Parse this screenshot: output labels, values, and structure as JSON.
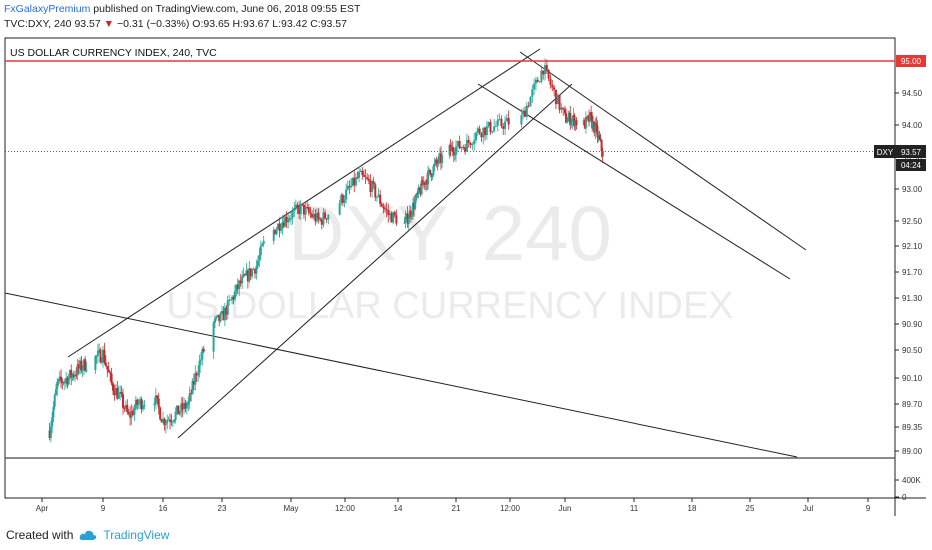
{
  "header": {
    "publisher": "FxGalaxyPremium",
    "published_text": "published on TradingView.com, June 06, 2018 09:55 EST",
    "symbol": "TVC:DXY, 240",
    "last": "93.57",
    "arrow": "▼",
    "change": "−0.31 (−0.33%)",
    "ohlc": "O:93.65 H:93.67 L:93.42 C:93.57"
  },
  "chart_data": {
    "type": "candlestick",
    "title": "US DOLLAR CURRENCY INDEX, 240, TVC",
    "watermark_top": "DXY, 240",
    "watermark_bottom": "US DOLLAR CURRENCY INDEX",
    "x_ticks": [
      "Apr",
      "9",
      "16",
      "23",
      "May",
      "12:00",
      "14",
      "21",
      "12:00",
      "Jun",
      "11",
      "18",
      "25",
      "Jul",
      "9"
    ],
    "y_ticks": [
      "94.50",
      "94.00",
      "93.50",
      "93.00",
      "92.50",
      "92.10",
      "91.70",
      "91.30",
      "90.90",
      "90.50",
      "90.10",
      "89.70",
      "89.35",
      "89.00"
    ],
    "volume_ticks": [
      "400K",
      "0"
    ],
    "price_line": {
      "label": "95.00",
      "value": 95.0,
      "color": "#e53935"
    },
    "last_price": {
      "symbol": "DXY",
      "value": "93.57",
      "countdown": "04:24"
    },
    "colors": {
      "up": "#26a69a",
      "down": "#c62828"
    },
    "trend_points": [
      [
        "2018-04-02",
        89.3
      ],
      [
        "2018-04-03",
        90.0
      ],
      [
        "2018-04-05",
        90.15
      ],
      [
        "2018-04-06",
        90.25
      ],
      [
        "2018-04-09",
        90.45
      ],
      [
        "2018-04-10",
        90.0
      ],
      [
        "2018-04-11",
        89.8
      ],
      [
        "2018-04-12",
        89.5
      ],
      [
        "2018-04-13",
        89.7
      ],
      [
        "2018-04-15",
        89.8
      ],
      [
        "2018-04-16",
        89.45
      ],
      [
        "2018-04-17",
        89.5
      ],
      [
        "2018-04-19",
        89.7
      ],
      [
        "2018-04-20",
        90.2
      ],
      [
        "2018-04-22",
        90.9
      ],
      [
        "2018-04-23",
        91.0
      ],
      [
        "2018-04-25",
        91.5
      ],
      [
        "2018-04-27",
        91.8
      ],
      [
        "2018-04-28",
        92.2
      ],
      [
        "2018-04-30",
        92.5
      ],
      [
        "2018-05-02",
        92.7
      ],
      [
        "2018-05-04",
        92.5
      ],
      [
        "2018-05-06",
        92.8
      ],
      [
        "2018-05-08",
        93.2
      ],
      [
        "2018-05-09",
        93.1
      ],
      [
        "2018-05-11",
        92.6
      ],
      [
        "2018-05-13",
        92.45
      ],
      [
        "2018-05-14",
        92.65
      ],
      [
        "2018-05-16",
        93.1
      ],
      [
        "2018-05-18",
        93.4
      ],
      [
        "2018-05-20",
        93.6
      ],
      [
        "2018-05-22",
        93.7
      ],
      [
        "2018-05-23",
        93.9
      ],
      [
        "2018-05-25",
        94.0
      ],
      [
        "2018-05-27",
        94.1
      ],
      [
        "2018-05-28",
        94.5
      ],
      [
        "2018-05-29",
        94.9
      ],
      [
        "2018-05-30",
        94.5
      ],
      [
        "2018-05-31",
        94.1
      ],
      [
        "2018-06-01",
        94.1
      ],
      [
        "2018-06-03",
        94.0
      ],
      [
        "2018-06-04",
        94.1
      ],
      [
        "2018-06-05",
        93.9
      ],
      [
        "2018-06-06",
        93.57
      ]
    ]
  },
  "footer": {
    "created_with": "Created with",
    "brand": "TradingView"
  }
}
